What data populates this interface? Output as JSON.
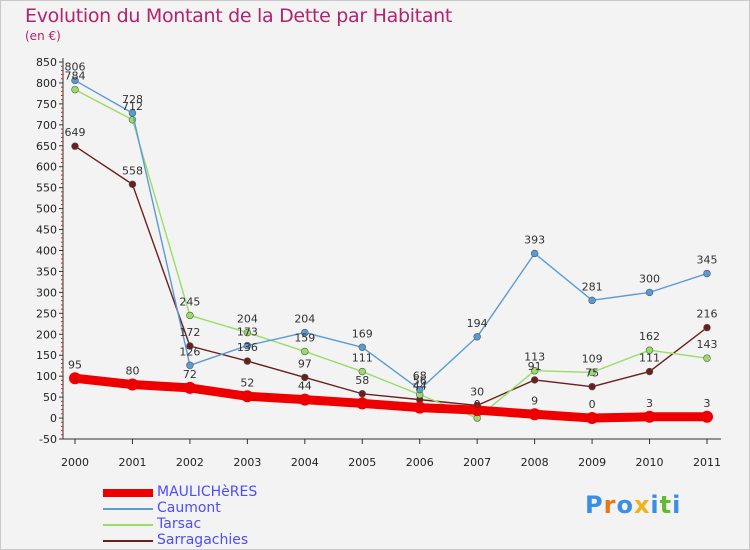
{
  "title": "Evolution du Montant de la Dette par Habitant",
  "subtitle": "(en €)",
  "logo": {
    "text": "Proxiti",
    "letters": [
      "P",
      "r",
      "o",
      "x",
      "i",
      "t",
      "i"
    ],
    "colors": [
      "#3a8ee6",
      "#e8771c",
      "#3a8ee6",
      "#f2b01e",
      "#3a8ee6",
      "#66b832",
      "#3a8ee6"
    ]
  },
  "chart_data": {
    "type": "line",
    "categories": [
      "2000",
      "2001",
      "2002",
      "2003",
      "2004",
      "2005",
      "2006",
      "2007",
      "2008",
      "2009",
      "2010",
      "2011"
    ],
    "ylim": [
      -50,
      850
    ],
    "ytick_labels": [
      "-50",
      "0",
      "50",
      "100",
      "150",
      "200",
      "250",
      "300",
      "350",
      "400",
      "450",
      "500",
      "550",
      "600",
      "650",
      "700",
      "750",
      "800",
      "850"
    ],
    "grid": false,
    "legend_position": "bottom-left",
    "series": [
      {
        "name": "MAULICHèRES",
        "color": "#ee0000",
        "values": [
          95,
          80,
          72,
          52,
          44,
          35,
          25,
          19,
          9,
          0,
          3,
          3
        ],
        "labels": [
          "95",
          "80",
          "72",
          "52",
          "44",
          "",
          "",
          "",
          "9",
          "0",
          "3",
          "3"
        ]
      },
      {
        "name": "Caumont",
        "color": "#5b9bd5",
        "values": [
          806,
          728,
          126,
          173,
          204,
          169,
          68,
          194,
          393,
          281,
          300,
          345
        ],
        "labels": [
          "806",
          "728",
          "126",
          "173",
          "204",
          "169",
          "68",
          "194",
          "393",
          "281",
          "300",
          "345"
        ]
      },
      {
        "name": "Tarsac",
        "color": "#99dd66",
        "values": [
          784,
          712,
          245,
          204,
          159,
          111,
          56,
          0,
          113,
          109,
          162,
          143
        ],
        "labels": [
          "784",
          "712",
          "245",
          "204",
          "159",
          "111",
          "56",
          "0",
          "113",
          "109",
          "162",
          "143"
        ]
      },
      {
        "name": "Sarragachies",
        "color": "#6b1f1f",
        "values": [
          649,
          558,
          172,
          136,
          97,
          58,
          44,
          30,
          91,
          75,
          111,
          216
        ],
        "labels": [
          "649",
          "558",
          "172",
          "136",
          "97",
          "58",
          "44",
          "30",
          "91",
          "75",
          "111",
          "216"
        ]
      }
    ]
  }
}
